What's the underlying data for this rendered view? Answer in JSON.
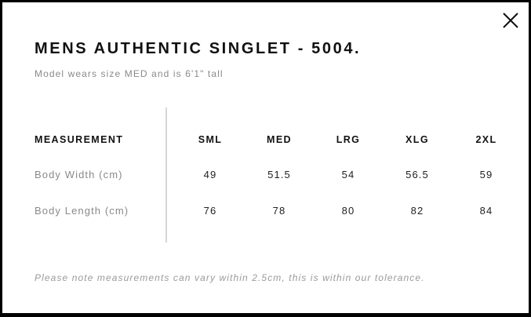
{
  "modal": {
    "title": "MENS AUTHENTIC SINGLET - 5004.",
    "subtitle": "Model wears size MED and is 6'1\" tall",
    "close_icon": "close-icon"
  },
  "table": {
    "header": {
      "label": "MEASUREMENT",
      "sizes": [
        "SML",
        "MED",
        "LRG",
        "XLG",
        "2XL"
      ]
    },
    "rows": [
      {
        "label": "Body Width (cm)",
        "values": [
          "49",
          "51.5",
          "54",
          "56.5",
          "59"
        ]
      },
      {
        "label": "Body Length (cm)",
        "values": [
          "76",
          "78",
          "80",
          "82",
          "84"
        ]
      }
    ]
  },
  "note": "Please note measurements can vary within 2.5cm, this is within our tolerance."
}
